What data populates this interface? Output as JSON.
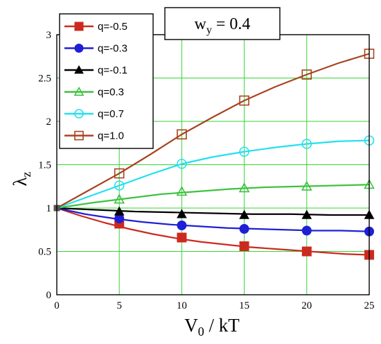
{
  "chart_data": {
    "type": "line",
    "title": {
      "main": "w",
      "sub": "y",
      "rest": " = 0.4"
    },
    "xlabel": {
      "main": "V",
      "sub": "0",
      "rest": " / kT"
    },
    "ylabel": {
      "main": "λ",
      "sub": "z"
    },
    "xlim": [
      0,
      25
    ],
    "ylim": [
      0,
      3
    ],
    "xticks": [
      "0",
      "5",
      "10",
      "15",
      "20",
      "25"
    ],
    "yticks": [
      "0",
      "0.5",
      "1",
      "1.5",
      "2",
      "2.5",
      "3"
    ],
    "grid": true,
    "legend_position": "top-left",
    "series": [
      {
        "name": "q=-0.5",
        "color": "#cc2a1e",
        "marker": "square-filled",
        "x": [
          0,
          5,
          10,
          15,
          20,
          25
        ],
        "y": [
          1.0,
          0.82,
          0.66,
          0.56,
          0.5,
          0.46
        ],
        "curve": [
          1.0,
          0.91,
          0.83,
          0.76,
          0.7,
          0.65,
          0.61,
          0.58,
          0.55,
          0.53,
          0.51,
          0.49,
          0.47,
          0.46
        ]
      },
      {
        "name": "q=-0.3",
        "color": "#1f1fd6",
        "marker": "circle-filled",
        "x": [
          0,
          5,
          10,
          15,
          20,
          25
        ],
        "y": [
          1.0,
          0.88,
          0.8,
          0.76,
          0.74,
          0.73
        ],
        "curve": [
          1.0,
          0.93,
          0.88,
          0.84,
          0.81,
          0.79,
          0.77,
          0.76,
          0.75,
          0.74,
          0.74,
          0.73
        ]
      },
      {
        "name": "q=-0.1",
        "color": "#000000",
        "marker": "triangle-filled",
        "x": [
          0,
          5,
          10,
          15,
          20,
          25
        ],
        "y": [
          1.0,
          0.96,
          0.93,
          0.92,
          0.92,
          0.92
        ],
        "curve": [
          1.0,
          0.98,
          0.96,
          0.95,
          0.94,
          0.93,
          0.93,
          0.92,
          0.92
        ]
      },
      {
        "name": "q=0.3",
        "color": "#3fc23f",
        "marker": "triangle-open",
        "x": [
          0,
          5,
          10,
          15,
          20,
          25
        ],
        "y": [
          1.0,
          1.1,
          1.19,
          1.23,
          1.25,
          1.27
        ],
        "curve": [
          1.0,
          1.06,
          1.11,
          1.16,
          1.19,
          1.22,
          1.24,
          1.25,
          1.26,
          1.27
        ]
      },
      {
        "name": "q=0.7",
        "color": "#22e0ef",
        "marker": "circle-open",
        "x": [
          0,
          5,
          10,
          15,
          20,
          25
        ],
        "y": [
          1.0,
          1.26,
          1.51,
          1.65,
          1.74,
          1.78
        ],
        "curve": [
          1.0,
          1.13,
          1.26,
          1.39,
          1.51,
          1.59,
          1.65,
          1.7,
          1.74,
          1.77,
          1.78
        ]
      },
      {
        "name": "q=1.0",
        "color": "#a8431f",
        "marker": "square-open",
        "x": [
          0,
          5,
          10,
          15,
          20,
          25
        ],
        "y": [
          1.0,
          1.4,
          1.85,
          2.24,
          2.54,
          2.78
        ],
        "curve": [
          1.0,
          1.2,
          1.4,
          1.62,
          1.85,
          2.05,
          2.24,
          2.4,
          2.54,
          2.67,
          2.78
        ]
      }
    ]
  }
}
